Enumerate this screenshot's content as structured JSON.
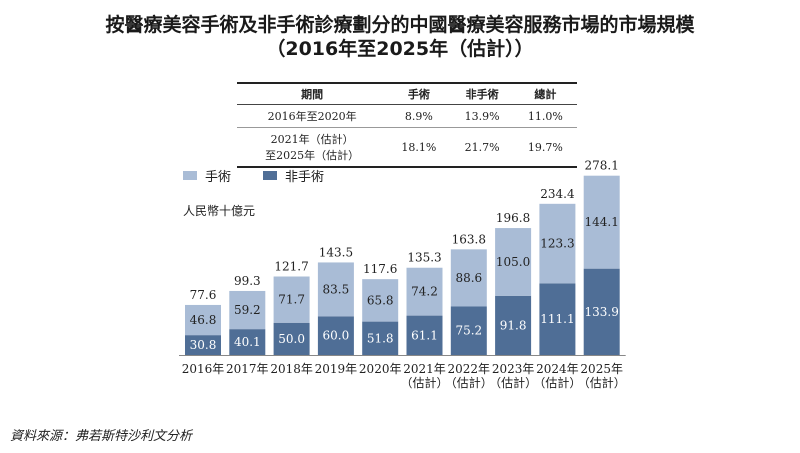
{
  "title": {
    "line1": "按醫療美容手術及非手術診療劃分的中國醫療美容服務市場的市場規模",
    "line2": "（2016年至2025年（估計））"
  },
  "cagr_table": {
    "headers": [
      "期間",
      "手術",
      "非手術",
      "總計"
    ],
    "rows": [
      {
        "period": "2016年至2020年",
        "surgical": "8.9%",
        "non_surgical": "13.9%",
        "total": "11.0%"
      },
      {
        "period_line1": "2021年（估計）",
        "period_line2": "至2025年（估計）",
        "surgical": "18.1%",
        "non_surgical": "21.7%",
        "total": "19.7%"
      }
    ]
  },
  "legend": {
    "surgical": "手術",
    "non_surgical": "非手術"
  },
  "unit": "人民幣十億元",
  "source": "資料來源：弗若斯特沙利文分析",
  "colors": {
    "surgical": "#a9bcd6",
    "non_surgical": "#4f6e96"
  },
  "chart_data": {
    "type": "bar",
    "stacked": true,
    "categories": [
      "2016年",
      "2017年",
      "2018年",
      "2019年",
      "2020年",
      "2021年（估計）",
      "2022年（估計）",
      "2023年（估計）",
      "2024年（估計）",
      "2025年（估計）"
    ],
    "category_lines": [
      [
        "2016年"
      ],
      [
        "2017年"
      ],
      [
        "2018年"
      ],
      [
        "2019年"
      ],
      [
        "2020年"
      ],
      [
        "2021年",
        "（估計）"
      ],
      [
        "2022年",
        "（估計）"
      ],
      [
        "2023年",
        "（估計）"
      ],
      [
        "2024年",
        "（估計）"
      ],
      [
        "2025年",
        "（估計）"
      ]
    ],
    "series": [
      {
        "name": "非手術",
        "values": [
          30.8,
          40.1,
          50.0,
          60.0,
          51.8,
          61.1,
          75.2,
          91.8,
          111.1,
          133.9
        ],
        "labels": [
          "30.8",
          "40.1",
          "50.0",
          "60.0",
          "51.8",
          "61.1",
          "75.2",
          "91.8",
          "111.1",
          "133.9"
        ]
      },
      {
        "name": "手術",
        "values": [
          46.8,
          59.2,
          71.7,
          83.5,
          65.8,
          74.2,
          88.6,
          105.0,
          123.3,
          144.1
        ],
        "labels": [
          "46.8",
          "59.2",
          "71.7",
          "83.5",
          "65.8",
          "74.2",
          "88.6",
          "105.0",
          "123.3",
          "144.1"
        ]
      }
    ],
    "totals": [
      77.6,
      99.3,
      121.7,
      143.5,
      117.6,
      135.3,
      163.8,
      196.8,
      234.4,
      278.1
    ],
    "total_labels": [
      "77.6",
      "99.3",
      "121.7",
      "143.5",
      "117.6",
      "135.3",
      "163.8",
      "196.8",
      "234.4",
      "278.1"
    ],
    "ylabel": "人民幣十億元"
  }
}
